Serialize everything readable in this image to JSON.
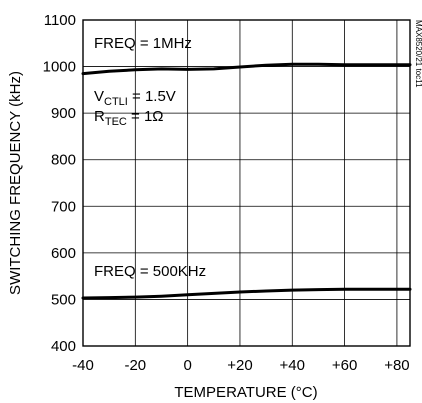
{
  "chart_data": {
    "type": "line",
    "title": "",
    "xlabel": "TEMPERATURE (°C)",
    "ylabel": "SWITCHING FREQUENCY (kHz)",
    "xlim": [
      -40,
      85
    ],
    "ylim": [
      400,
      1100
    ],
    "xticks": [
      -40,
      -20,
      0,
      20,
      40,
      60,
      80
    ],
    "xtick_labels": [
      "-40",
      "-20",
      "0",
      "+20",
      "+40",
      "+60",
      "+80"
    ],
    "yticks": [
      400,
      500,
      600,
      700,
      800,
      900,
      1000,
      1100
    ],
    "ytick_labels": [
      "400",
      "500",
      "600",
      "700",
      "800",
      "900",
      "1000",
      "1100"
    ],
    "grid": true,
    "series": [
      {
        "name": "FREQ = 1MHz",
        "x": [
          -40,
          -30,
          -20,
          -10,
          0,
          10,
          20,
          30,
          40,
          50,
          60,
          70,
          85
        ],
        "y": [
          985,
          990,
          993,
          995,
          994,
          995,
          999,
          1003,
          1005,
          1005,
          1004,
          1004,
          1004
        ]
      },
      {
        "name": "FREQ = 500KHz",
        "x": [
          -40,
          -30,
          -20,
          -10,
          0,
          10,
          20,
          30,
          40,
          50,
          60,
          70,
          85
        ],
        "y": [
          503,
          504,
          505,
          507,
          510,
          513,
          516,
          518,
          520,
          521,
          522,
          522,
          522
        ]
      }
    ],
    "annotations": {
      "freq_1mhz": "FREQ = 1MHz",
      "vctli_main": "V",
      "vctli_sub": "CTLI",
      "vctli_value": " = 1.5V",
      "rtec_main": "R",
      "rtec_sub": "TEC",
      "rtec_value": " = 1Ω",
      "freq_500khz": "FREQ = 500KHz",
      "figure_id": "MAX8520/21 toc11"
    }
  }
}
